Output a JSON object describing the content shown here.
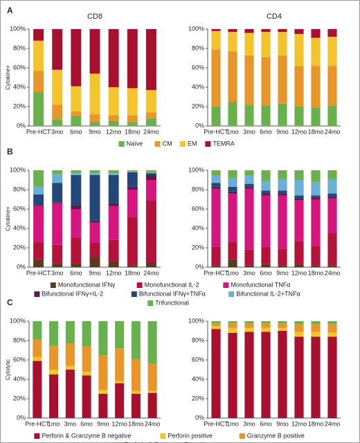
{
  "chart_data": [
    {
      "type": "stacked_bar",
      "panel": "A",
      "title": "CD8",
      "ylabel": "Cytokine+",
      "categories": [
        "Pre-HCT",
        "3mo",
        "6mo",
        "9mo",
        "12mo",
        "18mo",
        "24mo"
      ],
      "series": [
        {
          "name": "Naïve",
          "color": "#6ab04c",
          "values": [
            35,
            7,
            10,
            4,
            5,
            4,
            8
          ]
        },
        {
          "name": "CM",
          "color": "#e8952a",
          "values": [
            22,
            15,
            5,
            8,
            6,
            7,
            6
          ]
        },
        {
          "name": "EM",
          "color": "#f3c42e",
          "values": [
            31,
            36,
            26,
            42,
            29,
            28,
            23
          ]
        },
        {
          "name": "TEMRA",
          "color": "#a8102e",
          "values": [
            12,
            42,
            59,
            46,
            60,
            61,
            63
          ]
        }
      ],
      "ylim": [
        0,
        100
      ],
      "yticks": [
        {
          "value": 0,
          "label": "0%"
        },
        {
          "value": 20,
          "label": "20%"
        },
        {
          "value": 40,
          "label": "40%"
        },
        {
          "value": 60,
          "label": "60%"
        },
        {
          "value": 80,
          "label": "80%"
        },
        {
          "value": 100,
          "label": "100%"
        }
      ]
    },
    {
      "type": "stacked_bar",
      "title": "CD4",
      "categories": [
        "Pre-HCT",
        "1mo",
        "3mo",
        "6mo",
        "9mo",
        "12mo",
        "18mo",
        "24mo"
      ],
      "series": [
        {
          "name": "Naïve",
          "color": "#6ab04c",
          "values": [
            20,
            25,
            22,
            21,
            23,
            20,
            19,
            21
          ]
        },
        {
          "name": "CM",
          "color": "#e8952a",
          "values": [
            59,
            52,
            51,
            50,
            50,
            42,
            43,
            41
          ]
        },
        {
          "name": "EM",
          "color": "#f3c42e",
          "values": [
            19,
            20,
            23,
            26,
            24,
            33,
            29,
            30
          ]
        },
        {
          "name": "TEMRA",
          "color": "#a8102e",
          "values": [
            2,
            3,
            4,
            3,
            3,
            5,
            9,
            8
          ]
        }
      ],
      "ylim": [
        0,
        100
      ],
      "yticks": [
        {
          "value": 0,
          "label": "0%"
        },
        {
          "value": 20,
          "label": "20%"
        },
        {
          "value": 40,
          "label": "40%"
        },
        {
          "value": 60,
          "label": "60%"
        },
        {
          "value": 80,
          "label": "80%"
        },
        {
          "value": 100,
          "label": "100%"
        }
      ]
    },
    {
      "type": "stacked_bar",
      "panel": "B",
      "ylabel": "Cytokine+",
      "categories": [
        "Pre-HCT",
        "3mo",
        "6mo",
        "9mo",
        "12mo",
        "18mo",
        "24mo"
      ],
      "series": [
        {
          "name": "Monofunctional IFNγ",
          "color": "#5b3a1e",
          "values": [
            8,
            4,
            4,
            10,
            6,
            2,
            5
          ]
        },
        {
          "name": "Monofunctional IL-2",
          "color": "#b5123a",
          "values": [
            18,
            19,
            26,
            15,
            22,
            50,
            64
          ]
        },
        {
          "name": "Monofunctional TNFα",
          "color": "#d6157f",
          "values": [
            37,
            43,
            30,
            21,
            35,
            28,
            21
          ]
        },
        {
          "name": "Bifunctional IFNγ+IL-2",
          "color": "#5a1a4a",
          "values": [
            1,
            1,
            4,
            2,
            3,
            3,
            5
          ]
        },
        {
          "name": "Bifunctional IFNγ+TNFα",
          "color": "#24477a",
          "values": [
            11,
            20,
            31,
            47,
            29,
            15,
            2
          ]
        },
        {
          "name": "Bifunctional IL-2+TNFα",
          "color": "#6baed6",
          "values": [
            8,
            9,
            2,
            2,
            2,
            1,
            1
          ]
        },
        {
          "name": "Trifunctional",
          "color": "#6ab04c",
          "values": [
            17,
            4,
            3,
            3,
            3,
            1,
            2
          ]
        }
      ],
      "ylim": [
        0,
        100
      ],
      "yticks": [
        {
          "value": 0,
          "label": "0%"
        },
        {
          "value": 20,
          "label": "20%"
        },
        {
          "value": 40,
          "label": "40%"
        },
        {
          "value": 60,
          "label": "60%"
        },
        {
          "value": 80,
          "label": "80%"
        },
        {
          "value": 100,
          "label": "100%"
        }
      ]
    },
    {
      "type": "stacked_bar",
      "categories": [
        "Pre-HCT",
        "1mo",
        "3mo",
        "6mo",
        "9mo",
        "12mo",
        "18mo",
        "24mo"
      ],
      "series": [
        {
          "name": "Monofunctional IFNγ",
          "color": "#5b3a1e",
          "values": [
            2,
            8,
            2,
            3,
            2,
            3,
            2,
            2
          ]
        },
        {
          "name": "Monofunctional IL-2",
          "color": "#b5123a",
          "values": [
            19,
            18,
            16,
            18,
            17,
            24,
            20,
            33
          ]
        },
        {
          "name": "Monofunctional TNFα",
          "color": "#d6157f",
          "values": [
            60,
            50,
            63,
            53,
            55,
            42,
            48,
            36
          ]
        },
        {
          "name": "Bifunctional IFNγ+IL-2",
          "color": "#5a1a4a",
          "values": [
            2,
            2,
            2,
            2,
            2,
            2,
            2,
            2
          ]
        },
        {
          "name": "Bifunctional IFNγ+TNFα",
          "color": "#24477a",
          "values": [
            4,
            5,
            3,
            3,
            3,
            3,
            2,
            3
          ]
        },
        {
          "name": "Bifunctional IL-2+TNFα",
          "color": "#6baed6",
          "values": [
            8,
            9,
            9,
            10,
            12,
            16,
            14,
            15
          ]
        },
        {
          "name": "Trifunctional",
          "color": "#6ab04c",
          "values": [
            5,
            8,
            5,
            11,
            9,
            10,
            12,
            9
          ]
        }
      ],
      "ylim": [
        0,
        100
      ],
      "yticks": [
        {
          "value": 0,
          "label": "0%"
        },
        {
          "value": 20,
          "label": "20%"
        },
        {
          "value": 40,
          "label": "40%"
        },
        {
          "value": 60,
          "label": "60%"
        },
        {
          "value": 80,
          "label": "80%"
        },
        {
          "value": 100,
          "label": "100%"
        }
      ]
    },
    {
      "type": "stacked_bar",
      "panel": "C",
      "ylabel": "Cytolytic",
      "categories": [
        "Pre-HCT",
        "1mo",
        "3mo",
        "6mo",
        "9mo",
        "12mo",
        "18mo",
        "24mo"
      ],
      "series": [
        {
          "name": "Perforin & Granzyme B negative",
          "color": "#a8102e",
          "values": [
            59,
            45,
            50,
            44,
            25,
            36,
            25,
            26
          ]
        },
        {
          "name": "Perforin positive",
          "color": "#f3c42e",
          "values": [
            4,
            5,
            4,
            4,
            4,
            2,
            3,
            2
          ]
        },
        {
          "name": "Granzyme B positive",
          "color": "#e8952a",
          "values": [
            18,
            25,
            23,
            26,
            36,
            34,
            33,
            28
          ]
        },
        {
          "name": "Perforin & Granzyme B positive",
          "color": "#6ab04c",
          "values": [
            19,
            25,
            23,
            26,
            35,
            28,
            39,
            44
          ]
        }
      ],
      "ylim": [
        0,
        100
      ],
      "yticks": [
        {
          "value": 0,
          "label": "0%"
        },
        {
          "value": 20,
          "label": "20%"
        },
        {
          "value": 40,
          "label": "40%"
        },
        {
          "value": 60,
          "label": "60%"
        },
        {
          "value": 80,
          "label": "80%"
        },
        {
          "value": 100,
          "label": "100%"
        }
      ]
    },
    {
      "type": "stacked_bar",
      "categories": [
        "Pre-HCT",
        "1mo",
        "3mo",
        "6mo",
        "9mo",
        "12mo",
        "18mo",
        "24mo"
      ],
      "series": [
        {
          "name": "Perforin & Granzyme B negative",
          "color": "#a8102e",
          "values": [
            92,
            88,
            89,
            89,
            90,
            84,
            84,
            84
          ]
        },
        {
          "name": "Perforin positive",
          "color": "#f3c42e",
          "values": [
            3,
            5,
            4,
            4,
            3,
            5,
            5,
            4
          ]
        },
        {
          "name": "Granzyme B positive",
          "color": "#e8952a",
          "values": [
            3,
            5,
            5,
            5,
            5,
            8,
            8,
            9
          ]
        },
        {
          "name": "Perforin & Granzyme B positive",
          "color": "#6ab04c",
          "values": [
            2,
            2,
            2,
            2,
            2,
            3,
            3,
            3
          ]
        }
      ],
      "ylim": [
        0,
        100
      ],
      "yticks": [
        {
          "value": 0,
          "label": "0%"
        },
        {
          "value": 20,
          "label": "20%"
        },
        {
          "value": 40,
          "label": "40%"
        },
        {
          "value": 60,
          "label": "60%"
        },
        {
          "value": 80,
          "label": "80%"
        },
        {
          "value": 100,
          "label": "100%"
        }
      ]
    }
  ]
}
